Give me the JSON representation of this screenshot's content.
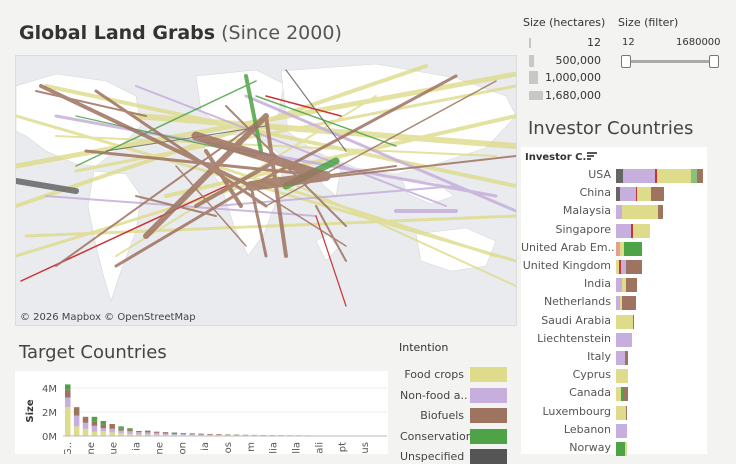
{
  "dashboard": {
    "title_bold": "Global Land Grabs",
    "title_rest": "(Since 2000)"
  },
  "map": {
    "attribution": "© 2026 Mapbox  © OpenStreetMap"
  },
  "size_legend": {
    "title": "Size (hectares)",
    "items": [
      "12",
      "500,000",
      "1,000,000",
      "1,680,000"
    ]
  },
  "size_filter": {
    "title": "Size (filter)",
    "min_label": "12",
    "max_label": "1680000"
  },
  "intention_legend": {
    "title": "Intention",
    "items": [
      {
        "label": "Food crops",
        "color": "#dedb8a"
      },
      {
        "label": "Non-food a..",
        "color": "#c6afdc"
      },
      {
        "label": "Biofuels",
        "color": "#9e7360"
      },
      {
        "label": "Conservation",
        "color": "#4ea346"
      },
      {
        "label": "Unspecified",
        "color": "#555555"
      }
    ]
  },
  "investor_countries": {
    "title": "Investor Countries",
    "column_header": "Investor C..",
    "rows": [
      {
        "label": "USA",
        "segments": [
          {
            "v": 7,
            "c": "#666666"
          },
          {
            "v": 32,
            "c": "#c6afdc"
          },
          {
            "v": 2,
            "c": "#cc3333"
          },
          {
            "v": 34,
            "c": "#dedb8a"
          },
          {
            "v": 6,
            "c": "#88c27a"
          },
          {
            "v": 6,
            "c": "#9e7360"
          }
        ]
      },
      {
        "label": "China",
        "segments": [
          {
            "v": 4,
            "c": "#666666"
          },
          {
            "v": 16,
            "c": "#c6afdc"
          },
          {
            "v": 1,
            "c": "#cc3333"
          },
          {
            "v": 14,
            "c": "#dedb8a"
          },
          {
            "v": 13,
            "c": "#9e7360"
          }
        ]
      },
      {
        "label": "Malaysia",
        "segments": [
          {
            "v": 6,
            "c": "#c6afdc"
          },
          {
            "v": 36,
            "c": "#dedb8a"
          },
          {
            "v": 5,
            "c": "#9e7360"
          }
        ]
      },
      {
        "label": "Singapore",
        "segments": [
          {
            "v": 15,
            "c": "#c6afdc"
          },
          {
            "v": 2,
            "c": "#cc3333"
          },
          {
            "v": 17,
            "c": "#dedb8a"
          }
        ]
      },
      {
        "label": "United Arab Em..",
        "segments": [
          {
            "v": 4,
            "c": "#e2a18a"
          },
          {
            "v": 4,
            "c": "#dedb8a"
          },
          {
            "v": 18,
            "c": "#4ea346"
          }
        ]
      },
      {
        "label": "United Kingdom",
        "segments": [
          {
            "v": 3,
            "c": "#dedb8a"
          },
          {
            "v": 2,
            "c": "#cc3333"
          },
          {
            "v": 5,
            "c": "#c6afdc"
          },
          {
            "v": 16,
            "c": "#9e7360"
          }
        ]
      },
      {
        "label": "India",
        "segments": [
          {
            "v": 6,
            "c": "#c6afdc"
          },
          {
            "v": 4,
            "c": "#dedb8a"
          },
          {
            "v": 11,
            "c": "#9e7360"
          }
        ]
      },
      {
        "label": "Netherlands",
        "segments": [
          {
            "v": 4,
            "c": "#c6afdc"
          },
          {
            "v": 2,
            "c": "#dedb8a"
          },
          {
            "v": 14,
            "c": "#9e7360"
          }
        ]
      },
      {
        "label": "Saudi Arabia",
        "segments": [
          {
            "v": 17,
            "c": "#dedb8a"
          },
          {
            "v": 1,
            "c": "#9e7360"
          }
        ]
      },
      {
        "label": "Liechtenstein",
        "segments": [
          {
            "v": 16,
            "c": "#c6afdc"
          }
        ]
      },
      {
        "label": "Italy",
        "segments": [
          {
            "v": 9,
            "c": "#c6afdc"
          },
          {
            "v": 3,
            "c": "#9e7360"
          }
        ]
      },
      {
        "label": "Cyprus",
        "segments": [
          {
            "v": 12,
            "c": "#dedb8a"
          }
        ]
      },
      {
        "label": "Canada",
        "segments": [
          {
            "v": 5,
            "c": "#dedb8a"
          },
          {
            "v": 2,
            "c": "#4ea346"
          },
          {
            "v": 5,
            "c": "#9e7360"
          }
        ]
      },
      {
        "label": "Luxembourg",
        "segments": [
          {
            "v": 10,
            "c": "#dedb8a"
          },
          {
            "v": 1,
            "c": "#9e7360"
          }
        ]
      },
      {
        "label": "Lebanon",
        "segments": [
          {
            "v": 11,
            "c": "#c6afdc"
          }
        ]
      },
      {
        "label": "Norway",
        "segments": [
          {
            "v": 9,
            "c": "#4ea346"
          },
          {
            "v": 2,
            "c": "#dedb8a"
          }
        ]
      }
    ]
  },
  "target_countries": {
    "title": "Target Countries",
    "y_title": "Size",
    "y_ticks": [
      "4M",
      "2M",
      "0M"
    ],
    "x_tick_fragments": [
      "G..",
      "ne",
      "ue",
      "ia",
      "ne",
      "on",
      "ia",
      "os",
      "m",
      "lia",
      "lla",
      "ali",
      "pt",
      "us"
    ]
  },
  "chart_data": {
    "type": "bar",
    "title": "Target Countries",
    "xlabel": "",
    "ylabel": "Size",
    "ylim": [
      0,
      5000000
    ],
    "stacked": true,
    "series": [
      {
        "values": [
          2400000,
          800000,
          600000,
          350000,
          400000,
          300000,
          250000,
          150000,
          120000,
          120000,
          100000,
          90000,
          80000,
          80000,
          70000,
          60000,
          60000,
          50000,
          50000,
          40000,
          40000,
          40000,
          30000,
          30000,
          30000,
          25000,
          20000,
          20000,
          20000,
          18000,
          15000,
          12000,
          10000,
          10000,
          8000,
          6000
        ]
      },
      {
        "values": [
          800000,
          900000,
          500000,
          500000,
          250000,
          300000,
          200000,
          250000,
          200000,
          180000,
          160000,
          120000,
          90000,
          90000,
          70000,
          60000,
          50000,
          40000,
          40000,
          40000,
          30000,
          30000,
          30000,
          20000,
          20000,
          20000,
          20000,
          15000,
          15000,
          10000,
          10000,
          10000,
          8000,
          6000,
          5000,
          5000
        ]
      },
      {
        "values": [
          700000,
          700000,
          500000,
          350000,
          300000,
          400000,
          150000,
          150000,
          100000,
          150000,
          100000,
          110000,
          100000,
          70000,
          80000,
          60000,
          60000,
          60000,
          40000,
          30000,
          30000,
          20000,
          20000,
          20000,
          15000,
          15000,
          15000,
          15000,
          10000,
          10000,
          10000,
          8000,
          8000,
          6000,
          5000,
          4000
        ]
      },
      {
        "values": [
          400000,
          0,
          0,
          400000,
          300000,
          0,
          200000,
          100000,
          0,
          0,
          0,
          0,
          30000,
          0,
          0,
          20000,
          0,
          0,
          0,
          15000,
          0,
          0,
          0,
          0,
          0,
          0,
          0,
          0,
          0,
          0,
          0,
          0,
          0,
          0,
          0,
          0
        ]
      },
      {
        "values": [
          0,
          0,
          0,
          0,
          0,
          0,
          0,
          0,
          0,
          0,
          0,
          0,
          0,
          0,
          0,
          0,
          0,
          0,
          0,
          0,
          0,
          0,
          0,
          0,
          0,
          0,
          0,
          0,
          0,
          0,
          0,
          0,
          0,
          0,
          0,
          0
        ]
      }
    ]
  }
}
